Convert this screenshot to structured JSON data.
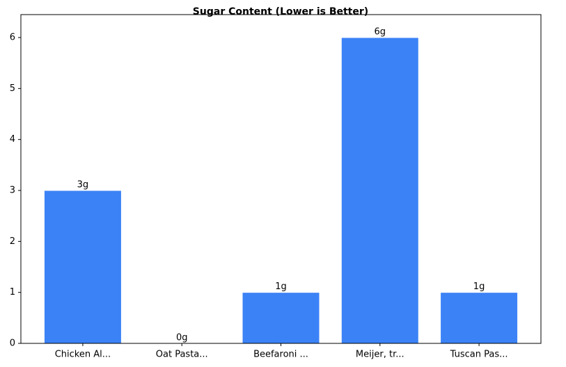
{
  "chart_data": {
    "type": "bar",
    "title": "Sugar Content (Lower is Better)",
    "categories": [
      "Chicken Al...",
      "Oat Pasta...",
      "Beefaroni ...",
      "Meijer, tr...",
      "Tuscan Pas..."
    ],
    "values": [
      3,
      0,
      1,
      6,
      1
    ],
    "value_labels": [
      "3g",
      "0g",
      "1g",
      "6g",
      "1g"
    ],
    "color": "#3b82f6",
    "ylim": [
      0,
      6.45
    ],
    "yticks": [
      0,
      1,
      2,
      3,
      4,
      5,
      6
    ],
    "grid": false
  }
}
